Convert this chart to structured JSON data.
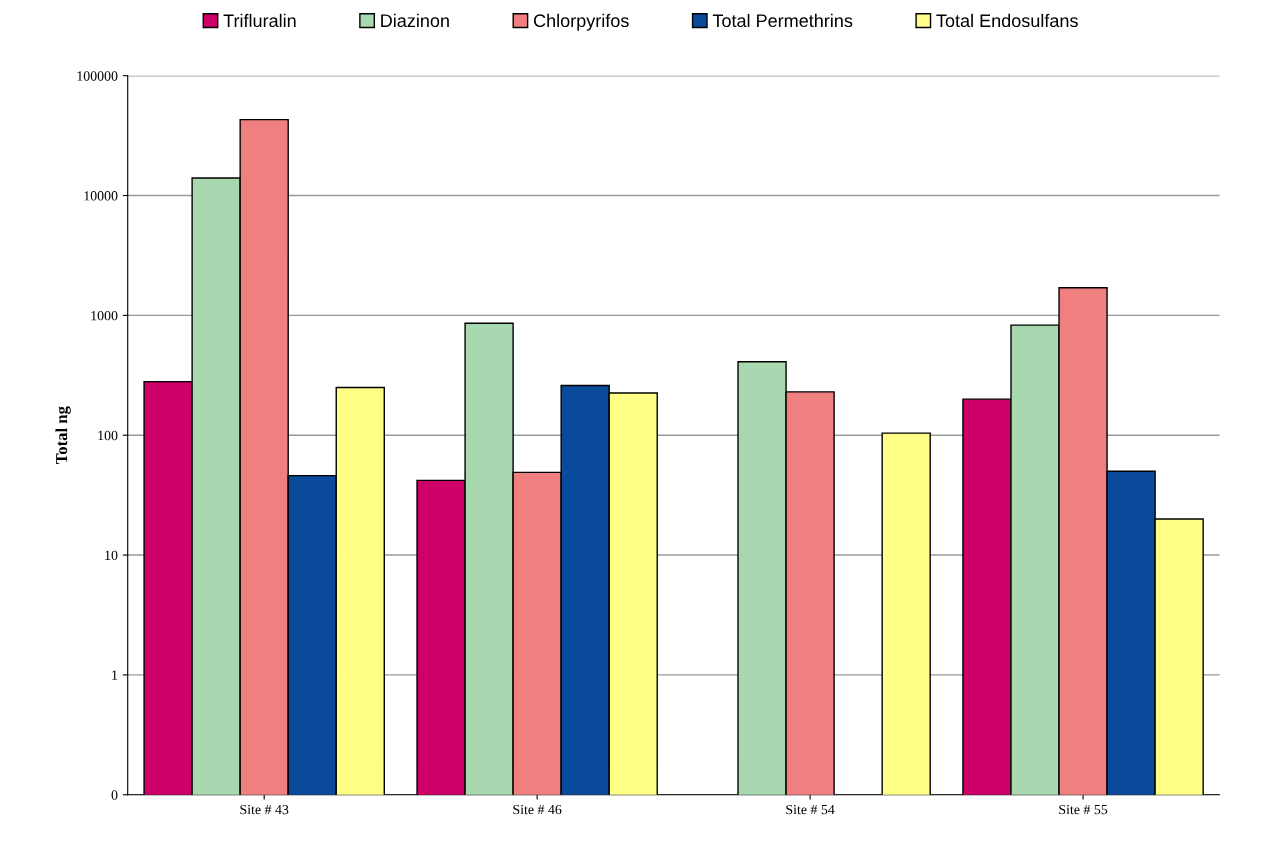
{
  "chart_data": {
    "type": "bar",
    "ylabel": "Total ng",
    "categories": [
      "Site # 43",
      "Site # 46",
      "Site # 54",
      "Site # 55"
    ],
    "series": [
      {
        "name": "Trifluralin",
        "color": "#cc0066",
        "values": [
          280,
          42,
          null,
          200
        ]
      },
      {
        "name": "Diazinon",
        "color": "#a8d8b0",
        "values": [
          14000,
          860,
          410,
          830
        ]
      },
      {
        "name": "Chlorpyrifos",
        "color": "#f08080",
        "values": [
          43000,
          49,
          230,
          1700
        ]
      },
      {
        "name": "Total Permethrins",
        "color": "#0a4a9a",
        "values": [
          46,
          260,
          null,
          50
        ]
      },
      {
        "name": "Total Endosulfans",
        "color": "#ffff88",
        "values": [
          250,
          225,
          104,
          20
        ]
      }
    ],
    "log": "y",
    "ylim": [
      0.1,
      100000
    ],
    "yticks": [
      {
        "value": 0.1,
        "label": "0"
      },
      1,
      10,
      100,
      1000,
      10000,
      100000
    ],
    "grid": "y",
    "legend": "top"
  }
}
